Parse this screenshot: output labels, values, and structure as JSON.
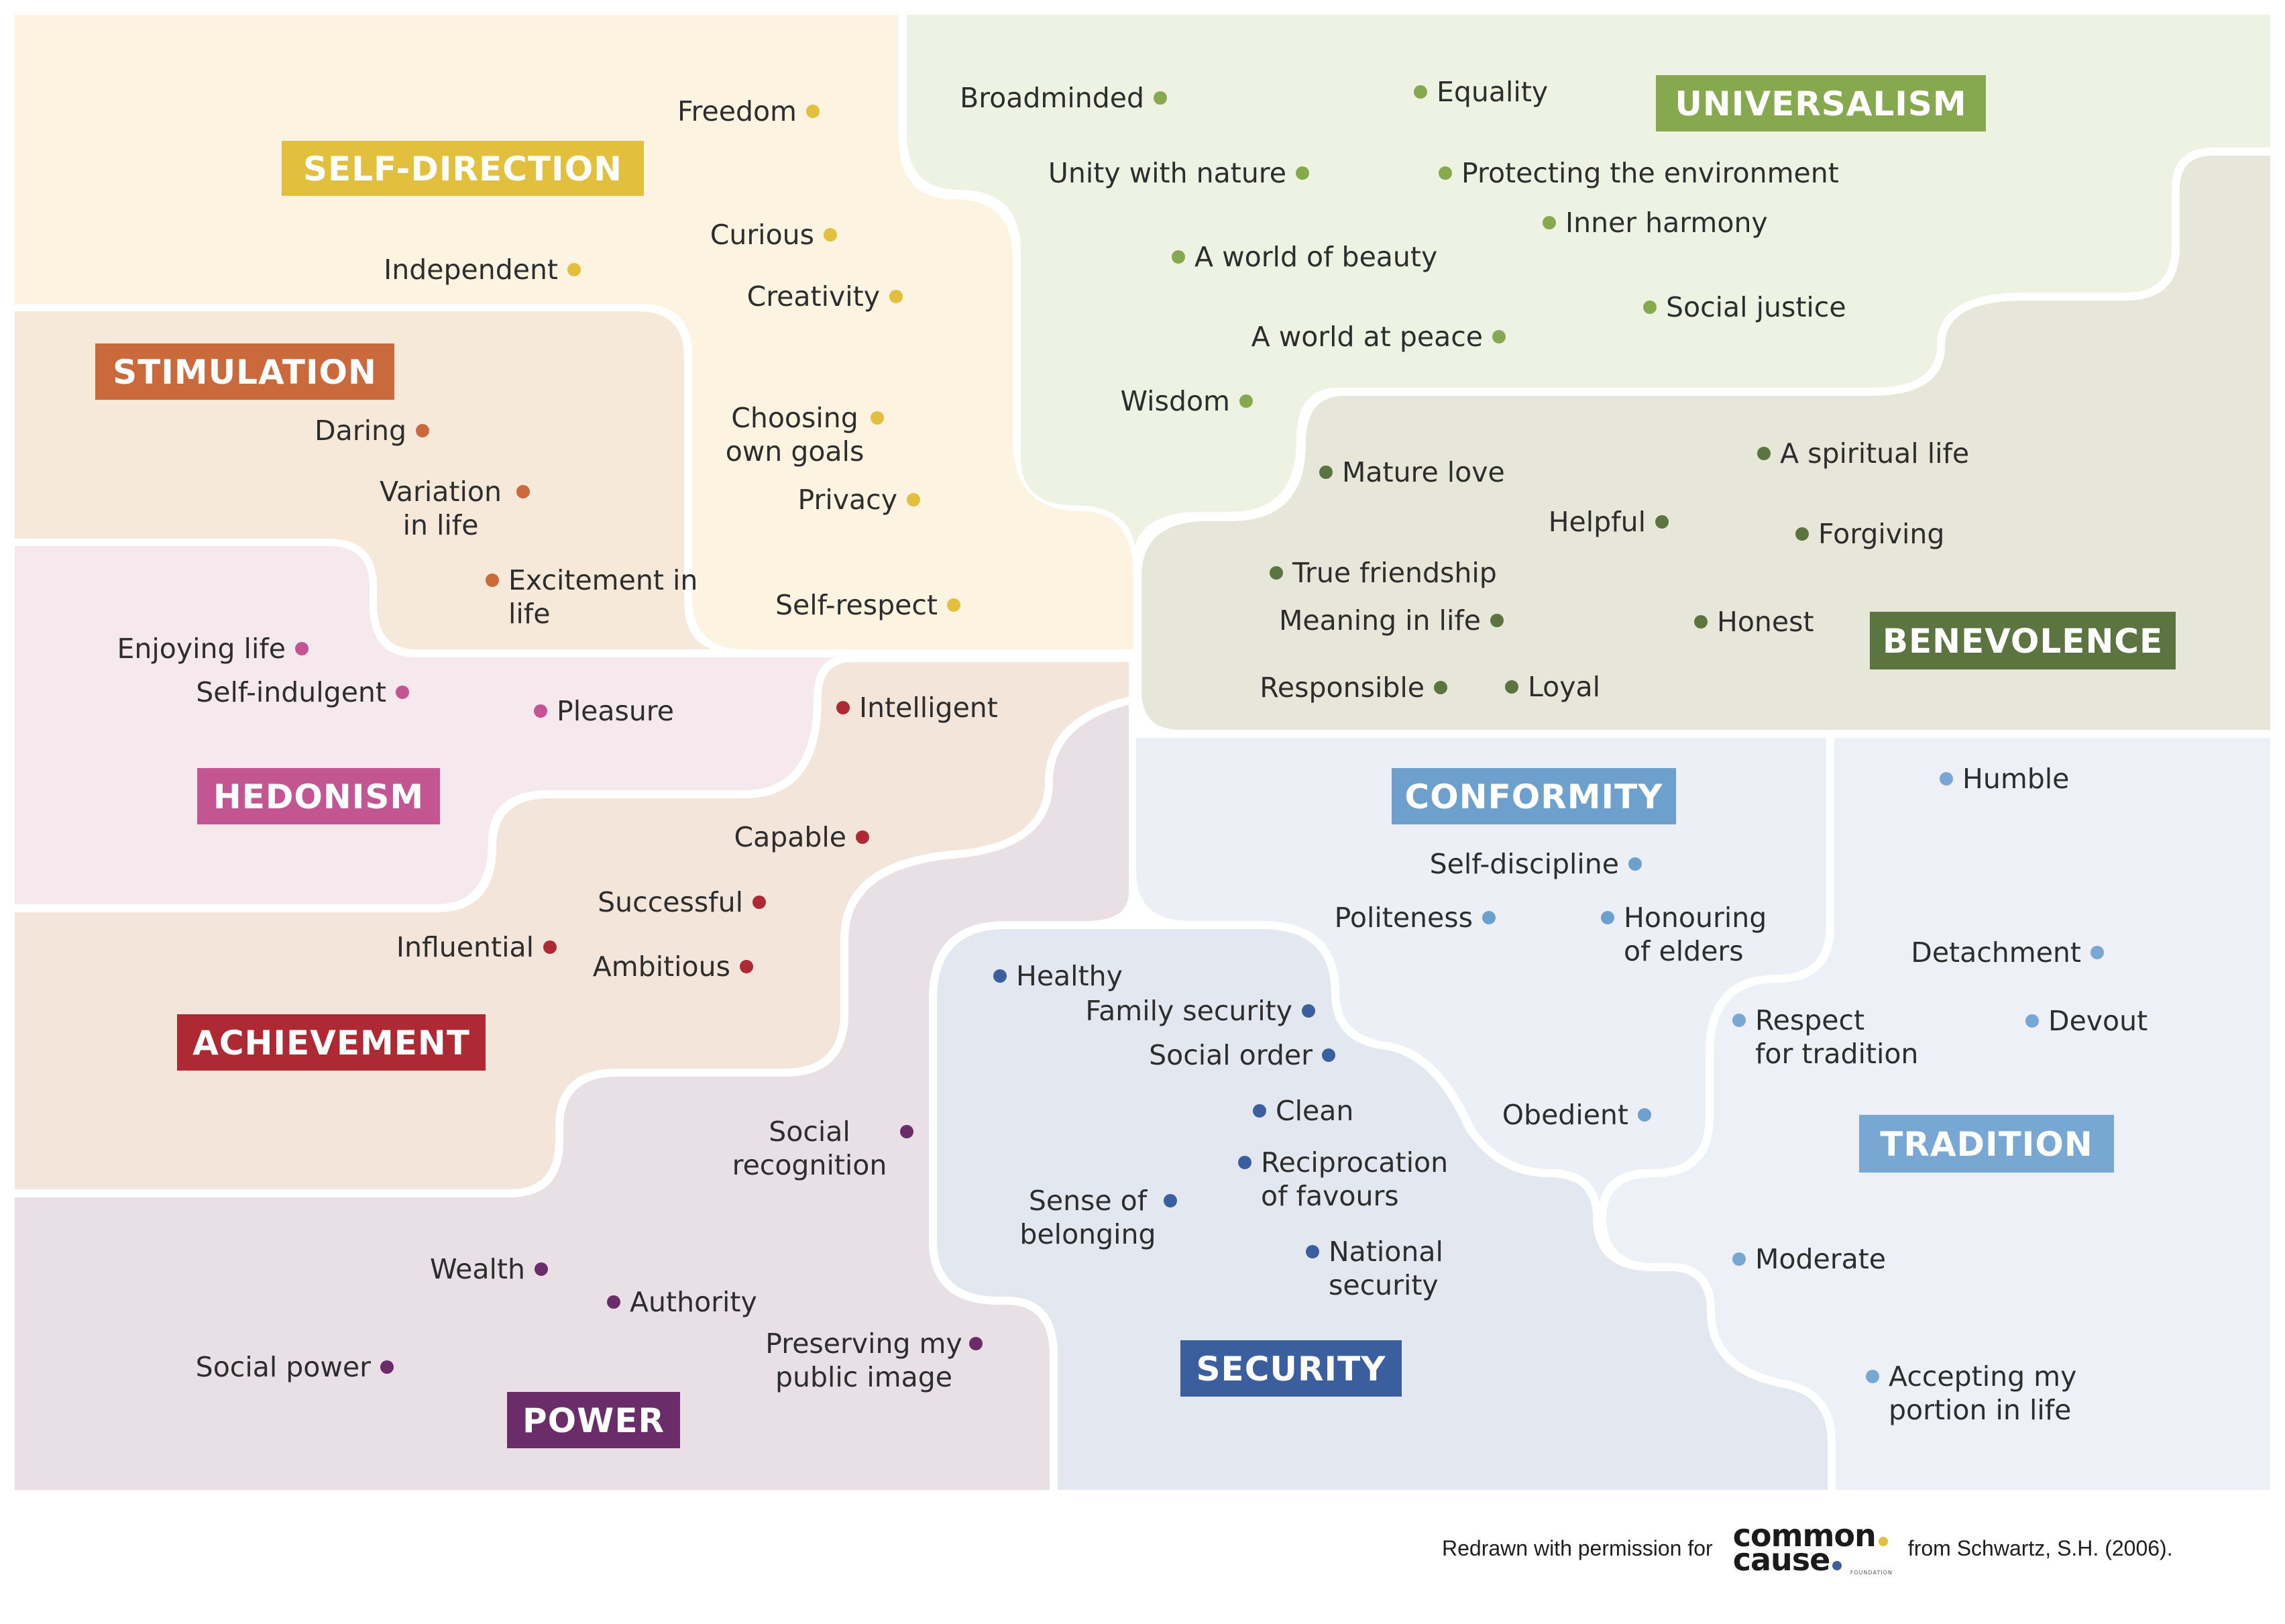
{
  "domains": [
    {
      "key": "self_direction",
      "label": "SELF-DIRECTION",
      "color": "#e2bf3c",
      "bg": "#fcf4e1"
    },
    {
      "key": "universalism",
      "label": "UNIVERSALISM",
      "color": "#86a94f",
      "bg": "#eef2e3"
    },
    {
      "key": "stimulation",
      "label": "STIMULATION",
      "color": "#c9693c",
      "bg": "#f6e9d9"
    },
    {
      "key": "benevolence",
      "label": "BENEVOLENCE",
      "color": "#5c7540",
      "bg": "#e6e7d9"
    },
    {
      "key": "hedonism",
      "label": "HEDONISM",
      "color": "#c35592",
      "bg": "#f5e9ed"
    },
    {
      "key": "achievement",
      "label": "ACHIEVEMENT",
      "color": "#ad2a35",
      "bg": "#f3e5da"
    },
    {
      "key": "conformity",
      "label": "CONFORMITY",
      "color": "#6da0cc",
      "bg": "#ecf0f6"
    },
    {
      "key": "tradition",
      "label": "TRADITION",
      "color": "#77a7d2",
      "bg": "#edf1f7"
    },
    {
      "key": "security",
      "label": "SECURITY",
      "color": "#3b5f9e",
      "bg": "#e3e7ef"
    },
    {
      "key": "power",
      "label": "POWER",
      "color": "#6b2c6a",
      "bg": "#e8e0e5"
    }
  ],
  "values": {
    "self_direction": [
      "Freedom",
      "Curious",
      "Independent",
      "Creativity",
      "Choosing own goals",
      "Privacy",
      "Self-respect"
    ],
    "universalism": [
      "Broadminded",
      "Equality",
      "Unity with nature",
      "Protecting the environment",
      "Inner harmony",
      "A world of beauty",
      "Social justice",
      "A world at peace",
      "Wisdom"
    ],
    "stimulation": [
      "Daring",
      "Variation in life",
      "Excitement in life"
    ],
    "benevolence": [
      "Mature love",
      "A spiritual life",
      "Helpful",
      "Forgiving",
      "True friendship",
      "Meaning in life",
      "Honest",
      "Responsible",
      "Loyal"
    ],
    "hedonism": [
      "Enjoying life",
      "Self-indulgent",
      "Pleasure"
    ],
    "achievement": [
      "Intelligent",
      "Capable",
      "Successful",
      "Influential",
      "Ambitious"
    ],
    "conformity": [
      "Self-discipline",
      "Politeness",
      "Honouring of elders",
      "Obedient"
    ],
    "tradition": [
      "Humble",
      "Detachment",
      "Respect for tradition",
      "Devout",
      "Moderate",
      "Accepting my portion in life"
    ],
    "security": [
      "Healthy",
      "Family security",
      "Social order",
      "Clean",
      "Reciprocation of favours",
      "Sense of belonging",
      "National security"
    ],
    "power": [
      "Social recognition",
      "Wealth",
      "Authority",
      "Preserving my public image",
      "Social power"
    ]
  },
  "footer": {
    "credit_prefix": "Redrawn with permission for",
    "logo_line1": "common",
    "logo_line2": "cause",
    "logo_small": "FOUNDATION",
    "credit_suffix": "from Schwartz, S.H. (2006).",
    "logo_dot_colors": [
      "#e2bf3c",
      "#3b5f9e"
    ]
  }
}
